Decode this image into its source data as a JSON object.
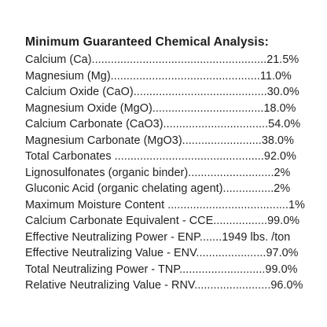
{
  "document": {
    "heading": "Minimum Guaranteed Chemical Analysis:",
    "rows": [
      "Calcium (Ca).......................................................21.5%",
      "Magnesium (Mg)...............................................11.0%",
      "Calcium Oxide (CaO)..........................................30.0%",
      "Magnesium Oxide (MgO)...................................18.0%",
      "Calcium Carbonate (CaO3).................................54.0%",
      "Magnesium Carbonate (MgO3).........................38.0%",
      "Total Carbonates ...............................................92.0%",
      "Lignosulfonates (organic binder)...........................2%",
      "Gluconic Acid (organic chelating agent)................2%",
      "Maximum Moisture Content ......................................1%",
      "Calcium Carbonate Equivalent - CCE.................99.0%",
      "Effective Neutralizing Power - ENP.......1949 lbs. /ton",
      "Effective Neutralizing Value - ENV......................97.0%",
      "Total Neutralizing Power - TNP...........................99.0%",
      "Relative Neutralizing Value - RNV........................96.0%"
    ]
  }
}
